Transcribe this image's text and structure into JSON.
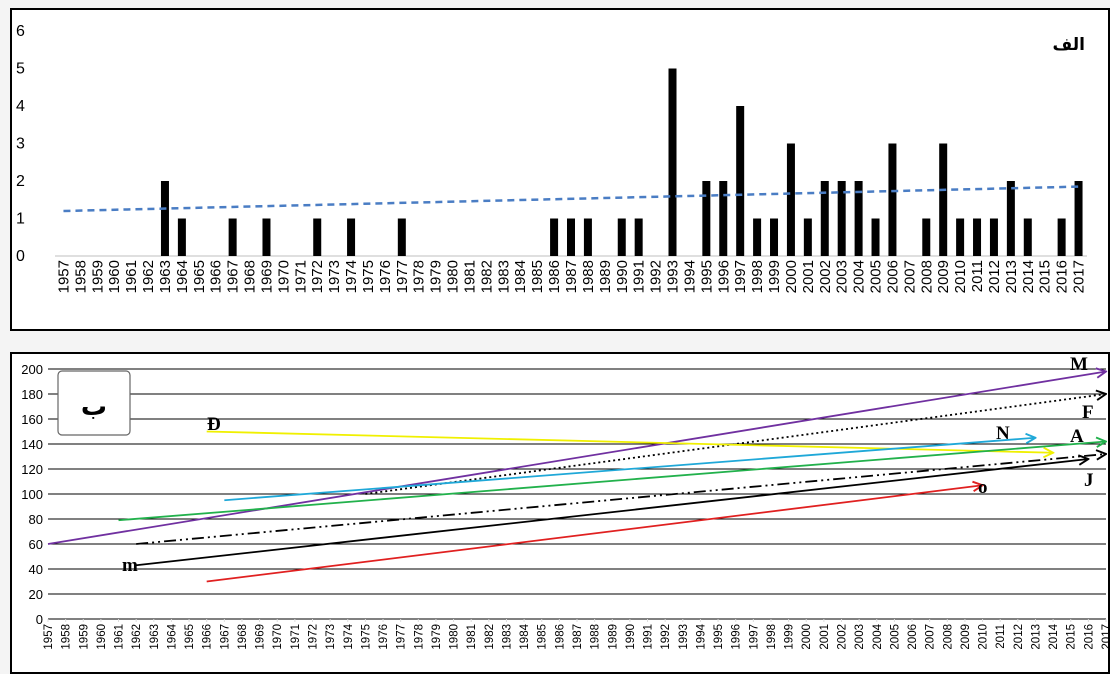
{
  "chart_data": [
    {
      "type": "bar",
      "label": "الف",
      "ylim": [
        0,
        6
      ],
      "yticks": [
        "0",
        "1",
        "2",
        "3",
        "4",
        "5",
        "6"
      ],
      "categories": [
        "1957",
        "1958",
        "1959",
        "1960",
        "1961",
        "1962",
        "1963",
        "1964",
        "1965",
        "1966",
        "1967",
        "1968",
        "1969",
        "1970",
        "1971",
        "1972",
        "1973",
        "1974",
        "1975",
        "1976",
        "1977",
        "1978",
        "1979",
        "1980",
        "1981",
        "1982",
        "1983",
        "1984",
        "1985",
        "1986",
        "1987",
        "1988",
        "1989",
        "1990",
        "1991",
        "1992",
        "1993",
        "1994",
        "1995",
        "1996",
        "1997",
        "1998",
        "1999",
        "2000",
        "2001",
        "2002",
        "2003",
        "2004",
        "2005",
        "2006",
        "2007",
        "2008",
        "2009",
        "2010",
        "2011",
        "2012",
        "2013",
        "2014",
        "2015",
        "2016",
        "2017"
      ],
      "values": [
        0,
        0,
        0,
        0,
        0,
        0,
        2,
        1,
        0,
        0,
        1,
        0,
        1,
        0,
        0,
        1,
        0,
        1,
        0,
        0,
        1,
        0,
        0,
        0,
        0,
        0,
        0,
        0,
        0,
        1,
        1,
        1,
        0,
        1,
        1,
        0,
        5,
        0,
        2,
        2,
        4,
        1,
        1,
        3,
        1,
        2,
        2,
        2,
        1,
        3,
        0,
        1,
        3,
        1,
        1,
        1,
        2,
        1,
        0,
        1,
        2
      ],
      "trendline": {
        "start": 1.2,
        "end": 1.85,
        "style": "dashed",
        "color": "#4a7dc4"
      },
      "bar_color": "#000000",
      "grid": false
    },
    {
      "type": "line",
      "label": "ب",
      "ylim": [
        0,
        200
      ],
      "yticks": [
        "0",
        "20",
        "40",
        "60",
        "80",
        "100",
        "120",
        "140",
        "160",
        "180",
        "200"
      ],
      "categories": [
        "1957",
        "1958",
        "1959",
        "1960",
        "1961",
        "1962",
        "1963",
        "1964",
        "1965",
        "1966",
        "1967",
        "1968",
        "1969",
        "1970",
        "1971",
        "1972",
        "1973",
        "1974",
        "1975",
        "1976",
        "1977",
        "1978",
        "1979",
        "1980",
        "1981",
        "1982",
        "1983",
        "1984",
        "1985",
        "1986",
        "1987",
        "1988",
        "1989",
        "1990",
        "1991",
        "1992",
        "1993",
        "1994",
        "1995",
        "1996",
        "1997",
        "1998",
        "1999",
        "2000",
        "2001",
        "2002",
        "2003",
        "2004",
        "2005",
        "2006",
        "2007",
        "2008",
        "2009",
        "2010",
        "2011",
        "2012",
        "2013",
        "2014",
        "2015",
        "2016",
        "2017"
      ],
      "grid": true,
      "series": [
        {
          "name": "M",
          "x": [
            "1957",
            "2017"
          ],
          "y": [
            60,
            198
          ],
          "color": "#7030a0",
          "dash": "solid",
          "arrow": true
        },
        {
          "name": "F",
          "x": [
            "1975",
            "2017"
          ],
          "y": [
            100,
            180
          ],
          "color": "#000000",
          "dash": "dotted",
          "arrow": true
        },
        {
          "name": "Đ",
          "x": [
            "1966",
            "2014"
          ],
          "y": [
            150,
            133
          ],
          "color": "#f0f000",
          "dash": "solid",
          "arrow": true
        },
        {
          "name": "N",
          "x": [
            "1967",
            "2013"
          ],
          "y": [
            95,
            145
          ],
          "color": "#1fa8d8",
          "dash": "solid",
          "arrow": true
        },
        {
          "name": "A",
          "x": [
            "1961",
            "2017"
          ],
          "y": [
            79,
            142
          ],
          "color": "#22b14c",
          "dash": "solid",
          "arrow": true
        },
        {
          "name": "",
          "x": [
            "1962",
            "2017"
          ],
          "y": [
            60,
            132
          ],
          "color": "#000000",
          "dash": "dashdotdot",
          "arrow": true
        },
        {
          "name": "J",
          "x": [
            "1962",
            "2016"
          ],
          "y": [
            43,
            128
          ],
          "color": "#000000",
          "dash": "solid",
          "arrow": true
        },
        {
          "name": "o",
          "x": [
            "1966",
            "2010"
          ],
          "y": [
            30,
            107
          ],
          "color": "#e02020",
          "dash": "solid",
          "arrow": true
        },
        {
          "name": "m",
          "x": [],
          "y": [],
          "color": "#000000",
          "dash": "solid",
          "arrow": false
        }
      ]
    }
  ]
}
